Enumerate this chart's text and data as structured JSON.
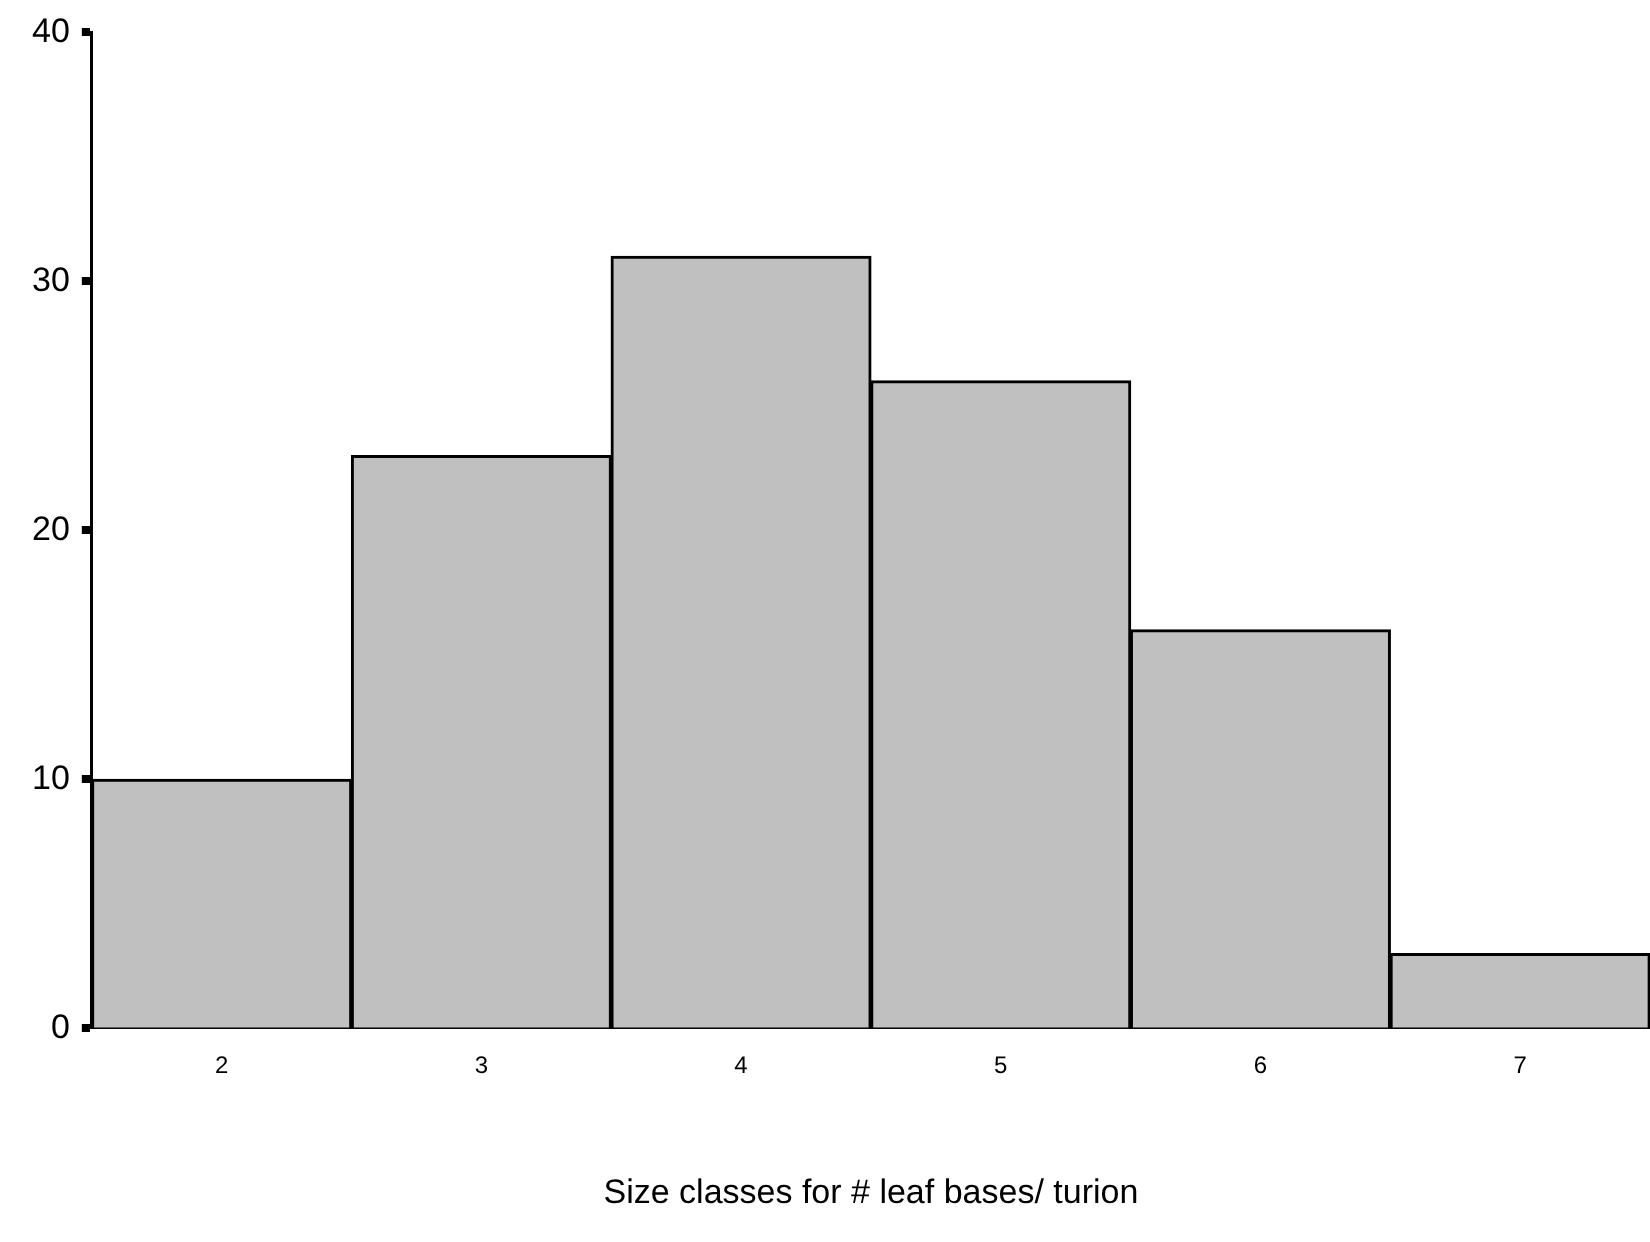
{
  "chart_data": {
    "type": "bar",
    "xlabel": "Size classes for # leaf bases/ turion",
    "categories": [
      "2",
      "3",
      "4",
      "5",
      "6",
      "7"
    ],
    "values": [
      10,
      23,
      31,
      26,
      16,
      3
    ],
    "color": "#c0c0c0",
    "ylim": [
      0,
      40
    ],
    "yticks": [
      0,
      10,
      20,
      30,
      40
    ],
    "grid": false,
    "legend": false
  }
}
